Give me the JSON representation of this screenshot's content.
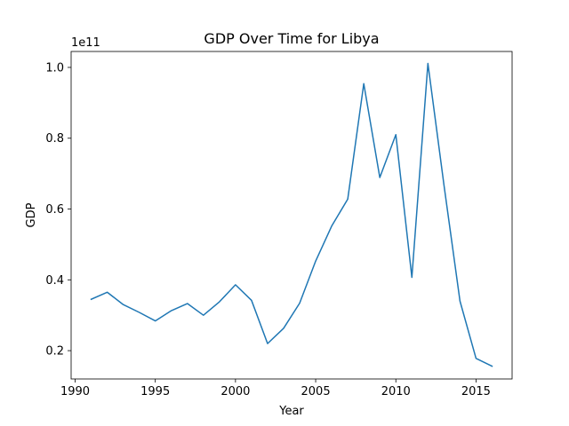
{
  "chart_data": {
    "type": "line",
    "title": "GDP Over Time for Libya",
    "xlabel": "Year",
    "ylabel": "GDP",
    "y_offset_label": "1e11",
    "xlim": [
      1989.75,
      2017.25
    ],
    "ylim": [
      0.12,
      1.045
    ],
    "x_ticks": [
      1990,
      1995,
      2000,
      2005,
      2010,
      2015
    ],
    "x_tick_labels": [
      "1990",
      "1995",
      "2000",
      "2005",
      "2010",
      "2015"
    ],
    "y_ticks": [
      0.2,
      0.4,
      0.6,
      0.8,
      1.0
    ],
    "y_tick_labels": [
      "0.2",
      "0.4",
      "0.6",
      "0.8",
      "1.0"
    ],
    "grid": false,
    "line_color": "#1f77b4",
    "series": [
      {
        "x": [
          1991,
          1992,
          1993,
          1994,
          1995,
          1996,
          1997,
          1998,
          1999,
          2000,
          2001,
          2002,
          2003,
          2004,
          2005,
          2006,
          2007,
          2008,
          2009,
          2010,
          2011,
          2012,
          2013,
          2014,
          2015,
          2016
        ],
        "values": [
          0.345,
          0.365,
          0.33,
          0.308,
          0.284,
          0.313,
          0.333,
          0.3,
          0.338,
          0.386,
          0.342,
          0.22,
          0.263,
          0.334,
          0.453,
          0.552,
          0.628,
          0.954,
          0.689,
          0.81,
          0.407,
          1.011,
          0.668,
          0.34,
          0.178,
          0.156
        ]
      }
    ]
  }
}
